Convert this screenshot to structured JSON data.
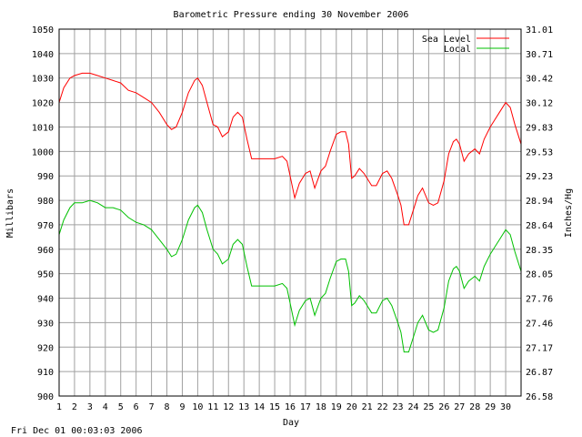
{
  "chart_data": {
    "type": "line",
    "title": "Barometric Pressure ending 30 November 2006",
    "xlabel": "Day",
    "ylabel": "Millibars",
    "y2label": "Inches/Hg",
    "footer": "Fri Dec 01 00:03:03 2006",
    "xlim": [
      1,
      31
    ],
    "ylim": [
      900,
      1050
    ],
    "grid": true,
    "legend_position": "top-right",
    "x_ticks": [
      "1",
      "2",
      "3",
      "4",
      "5",
      "6",
      "7",
      "8",
      "9",
      "10",
      "11",
      "12",
      "13",
      "14",
      "15",
      "16",
      "17",
      "18",
      "19",
      "20",
      "21",
      "22",
      "23",
      "24",
      "25",
      "26",
      "27",
      "28",
      "29",
      "30"
    ],
    "y_ticks": [
      "1050",
      "1040",
      "1030",
      "1020",
      "1010",
      "1000",
      "990",
      "980",
      "970",
      "960",
      "950",
      "940",
      "930",
      "920",
      "910",
      "900"
    ],
    "y2_ticks": [
      "31.01",
      "30.71",
      "30.42",
      "30.12",
      "29.83",
      "29.53",
      "29.23",
      "28.94",
      "28.64",
      "28.35",
      "28.05",
      "27.76",
      "27.46",
      "27.17",
      "26.87",
      "26.58"
    ],
    "series": [
      {
        "name": "Sea Level",
        "color": "#ff0000",
        "x": [
          1,
          1.3,
          1.7,
          2,
          2.5,
          3,
          3.5,
          4,
          4.5,
          5,
          5.5,
          6,
          6.5,
          7,
          7.5,
          8,
          8.3,
          8.6,
          9,
          9.4,
          9.8,
          10,
          10.3,
          10.6,
          11,
          11.3,
          11.6,
          12,
          12.3,
          12.6,
          12.9,
          13.2,
          13.5,
          14,
          14.5,
          15,
          15.5,
          15.8,
          16,
          16.3,
          16.6,
          17,
          17.3,
          17.6,
          18,
          18.3,
          18.6,
          19,
          19.3,
          19.6,
          19.8,
          20,
          20.2,
          20.5,
          20.8,
          21,
          21.3,
          21.6,
          22,
          22.3,
          22.6,
          23,
          23.2,
          23.4,
          23.7,
          24,
          24.3,
          24.6,
          25,
          25.3,
          25.6,
          26,
          26.3,
          26.6,
          26.8,
          27,
          27.3,
          27.6,
          28,
          28.3,
          28.6,
          29,
          29.3,
          29.6,
          30,
          30.3,
          30.6,
          31
        ],
        "values": [
          1020,
          1026,
          1030,
          1031,
          1032,
          1032,
          1031,
          1030,
          1029,
          1028,
          1025,
          1024,
          1022,
          1020,
          1016,
          1011,
          1009,
          1010,
          1016,
          1024,
          1029,
          1030,
          1027,
          1020,
          1011,
          1010,
          1006,
          1008,
          1014,
          1016,
          1014,
          1005,
          997,
          997,
          997,
          997,
          998,
          996,
          990,
          981,
          987,
          991,
          992,
          985,
          992,
          994,
          1000,
          1007,
          1008,
          1008,
          1003,
          989,
          990,
          993,
          991,
          989,
          986,
          986,
          991,
          992,
          989,
          982,
          978,
          970,
          970,
          976,
          982,
          985,
          979,
          978,
          979,
          988,
          999,
          1004,
          1005,
          1003,
          996,
          999,
          1001,
          999,
          1005,
          1010,
          1013,
          1016,
          1020,
          1018,
          1011,
          1003
        ]
      },
      {
        "name": "Local",
        "color": "#00c000",
        "x": [
          1,
          1.3,
          1.7,
          2,
          2.5,
          3,
          3.5,
          4,
          4.5,
          5,
          5.5,
          6,
          6.5,
          7,
          7.5,
          8,
          8.3,
          8.6,
          9,
          9.4,
          9.8,
          10,
          10.3,
          10.6,
          11,
          11.3,
          11.6,
          12,
          12.3,
          12.6,
          12.9,
          13.2,
          13.5,
          14,
          14.5,
          15,
          15.5,
          15.8,
          16,
          16.3,
          16.6,
          17,
          17.3,
          17.6,
          18,
          18.3,
          18.6,
          19,
          19.3,
          19.6,
          19.8,
          20,
          20.2,
          20.5,
          20.8,
          21,
          21.3,
          21.6,
          22,
          22.3,
          22.6,
          23,
          23.2,
          23.4,
          23.7,
          24,
          24.3,
          24.6,
          25,
          25.3,
          25.6,
          26,
          26.3,
          26.6,
          26.8,
          27,
          27.3,
          27.6,
          28,
          28.3,
          28.6,
          29,
          29.3,
          29.6,
          30,
          30.3,
          30.6,
          31
        ],
        "values": [
          966,
          972,
          977,
          979,
          979,
          980,
          979,
          977,
          977,
          976,
          973,
          971,
          970,
          968,
          964,
          960,
          957,
          958,
          964,
          972,
          977,
          978,
          975,
          968,
          960,
          958,
          954,
          956,
          962,
          964,
          962,
          953,
          945,
          945,
          945,
          945,
          946,
          944,
          938,
          929,
          935,
          939,
          940,
          933,
          940,
          942,
          948,
          955,
          956,
          956,
          951,
          937,
          938,
          941,
          939,
          937,
          934,
          934,
          939,
          940,
          937,
          930,
          926,
          918,
          918,
          924,
          930,
          933,
          927,
          926,
          927,
          936,
          947,
          952,
          953,
          951,
          944,
          947,
          949,
          947,
          953,
          958,
          961,
          964,
          968,
          966,
          959,
          951
        ]
      }
    ]
  }
}
